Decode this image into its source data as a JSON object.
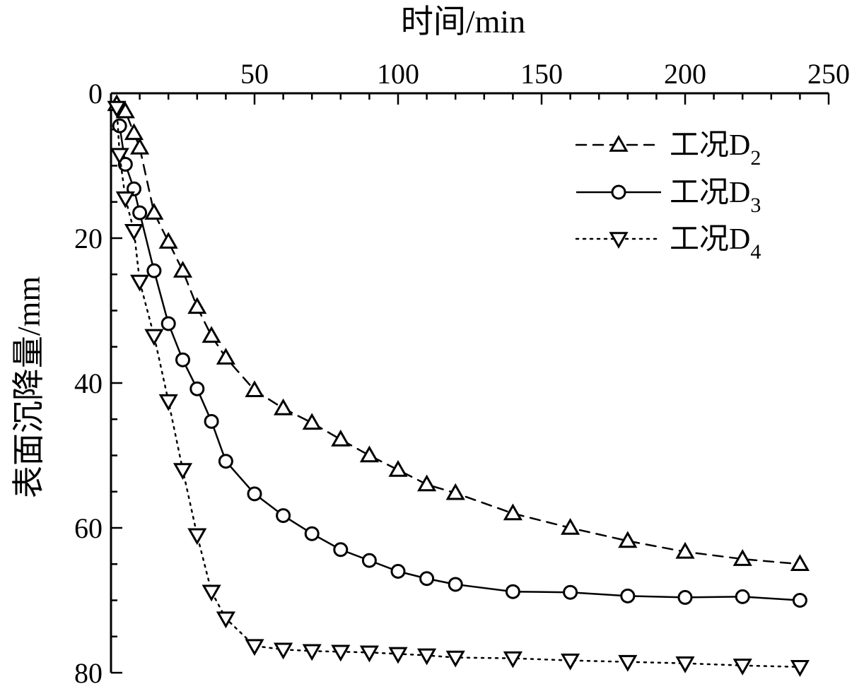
{
  "chart_data": {
    "type": "line",
    "xlabel": "时间/min",
    "ylabel": "表面沉降量/mm",
    "xlim": [
      0,
      250
    ],
    "ylim": [
      0,
      80
    ],
    "x_axis_position": "top",
    "y_axis_inverted": true,
    "x_ticks": [
      "50",
      "100",
      "150",
      "200",
      "250"
    ],
    "y_ticks": [
      "0",
      "20",
      "40",
      "60",
      "80"
    ],
    "grid": false,
    "legend_position": "top-right",
    "series": [
      {
        "name": "工况D",
        "subscript": "2",
        "line_style": "dashed",
        "marker": "triangle-up",
        "x": [
          2,
          5,
          8,
          10,
          15,
          20,
          25,
          30,
          35,
          40,
          50,
          60,
          70,
          80,
          90,
          100,
          110,
          120,
          140,
          160,
          180,
          200,
          220,
          240
        ],
        "y": [
          1.5,
          2.5,
          5.5,
          7.5,
          16.5,
          20.5,
          24.5,
          29.5,
          33.5,
          36.5,
          41.0,
          43.5,
          45.5,
          47.8,
          50.0,
          52.0,
          54.0,
          55.2,
          58.0,
          60.0,
          61.8,
          63.3,
          64.3,
          65.0
        ]
      },
      {
        "name": "工况D",
        "subscript": "3",
        "line_style": "solid",
        "marker": "circle",
        "x": [
          3,
          5,
          8,
          10,
          15,
          20,
          25,
          30,
          35,
          40,
          50,
          60,
          70,
          80,
          90,
          100,
          110,
          120,
          140,
          160,
          180,
          200,
          220,
          240
        ],
        "y": [
          4.5,
          9.8,
          13.2,
          16.5,
          24.5,
          31.8,
          36.8,
          40.8,
          45.3,
          50.8,
          55.3,
          58.3,
          60.8,
          63.0,
          64.5,
          66.0,
          67.0,
          67.8,
          68.8,
          68.9,
          69.4,
          69.6,
          69.5,
          70.0
        ]
      },
      {
        "name": "工况D",
        "subscript": "4",
        "line_style": "dotted",
        "marker": "triangle-down",
        "x": [
          2,
          3,
          5,
          8,
          10,
          15,
          20,
          25,
          30,
          35,
          40,
          50,
          60,
          70,
          80,
          90,
          100,
          110,
          120,
          140,
          160,
          180,
          200,
          220,
          240
        ],
        "y": [
          2.0,
          8.5,
          14.5,
          19.0,
          26.0,
          33.5,
          42.5,
          52.0,
          61.0,
          68.8,
          72.5,
          76.3,
          76.8,
          77.0,
          77.1,
          77.2,
          77.4,
          77.6,
          77.9,
          78.0,
          78.3,
          78.5,
          78.7,
          79.0,
          79.2
        ]
      }
    ]
  }
}
